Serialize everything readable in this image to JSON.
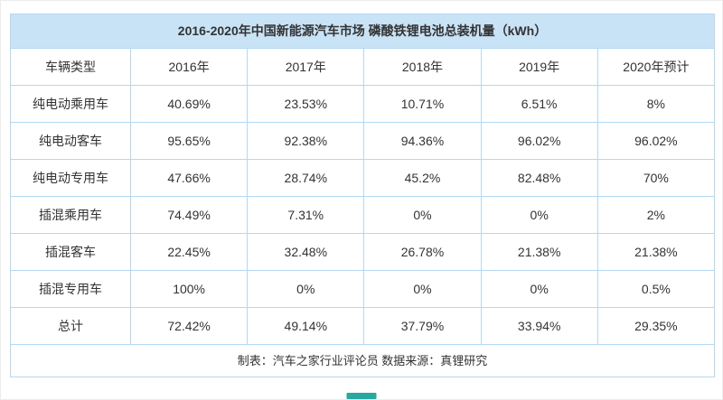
{
  "title": "2016-2020年中国新能源汽车市场 磷酸铁锂电池总装机量（kWh）",
  "footer": "制表：汽车之家行业评论员  数据来源：真锂研究",
  "colors": {
    "title_bg": "#c9e3f6",
    "grid_border": "#b3d8f3",
    "text": "#333333",
    "accent_bar": "#2aa79f"
  },
  "chart_data": {
    "type": "table",
    "title": "2016-2020年中国新能源汽车市场 磷酸铁锂电池总装机量（kWh）",
    "columns": [
      "车辆类型",
      "2016年",
      "2017年",
      "2018年",
      "2019年",
      "2020年预计"
    ],
    "rows": [
      [
        "纯电动乘用车",
        "40.69%",
        "23.53%",
        "10.71%",
        "6.51%",
        "8%"
      ],
      [
        "纯电动客车",
        "95.65%",
        "92.38%",
        "94.36%",
        "96.02%",
        "96.02%"
      ],
      [
        "纯电动专用车",
        "47.66%",
        "28.74%",
        "45.2%",
        "82.48%",
        "70%"
      ],
      [
        "插混乘用车",
        "74.49%",
        "7.31%",
        "0%",
        "0%",
        "2%"
      ],
      [
        "插混客车",
        "22.45%",
        "32.48%",
        "26.78%",
        "21.38%",
        "21.38%"
      ],
      [
        "插混专用车",
        "100%",
        "0%",
        "0%",
        "0%",
        "0.5%"
      ],
      [
        "总计",
        "72.42%",
        "49.14%",
        "37.79%",
        "33.94%",
        "29.35%"
      ]
    ],
    "notes": "制表：汽车之家行业评论员  数据来源：真锂研究",
    "layout": {
      "grid": "on",
      "header_position": "top",
      "first_column_role": "row-label"
    }
  }
}
